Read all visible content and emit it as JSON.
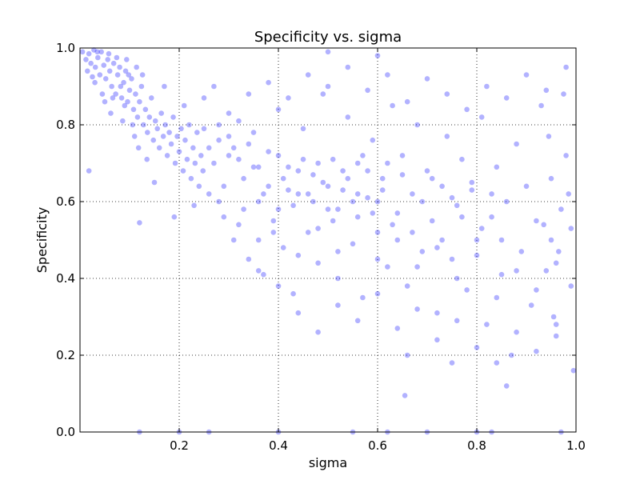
{
  "chart_data": {
    "type": "scatter",
    "title": "Specificity vs. sigma",
    "xlabel": "sigma",
    "ylabel": "Specificity",
    "xlim": [
      0.0,
      1.0
    ],
    "ylim": [
      0.0,
      1.0
    ],
    "x_tick_labels": [
      "0.2",
      "0.4",
      "0.6",
      "0.8",
      "1.0"
    ],
    "x_tick_values": [
      0.2,
      0.4,
      0.6,
      0.8,
      1.0
    ],
    "y_tick_labels": [
      "0.0",
      "0.2",
      "0.4",
      "0.6",
      "0.8",
      "1.0"
    ],
    "y_tick_values": [
      0.0,
      0.2,
      0.4,
      0.6,
      0.8,
      1.0
    ],
    "grid": true,
    "marker_color": "#0000ff",
    "marker_alpha": 0.3,
    "series": [
      {
        "values": [
          [
            0.005,
            0.99
          ],
          [
            0.012,
            0.97
          ],
          [
            0.018,
            0.985
          ],
          [
            0.022,
            0.96
          ],
          [
            0.028,
            0.995
          ],
          [
            0.031,
            0.95
          ],
          [
            0.036,
            0.975
          ],
          [
            0.04,
            0.93
          ],
          [
            0.043,
            0.99
          ],
          [
            0.048,
            0.955
          ],
          [
            0.052,
            0.92
          ],
          [
            0.056,
            0.97
          ],
          [
            0.06,
            0.94
          ],
          [
            0.064,
            0.9
          ],
          [
            0.068,
            0.96
          ],
          [
            0.072,
            0.88
          ],
          [
            0.076,
            0.93
          ],
          [
            0.08,
            0.95
          ],
          [
            0.084,
            0.87
          ],
          [
            0.088,
            0.91
          ],
          [
            0.092,
            0.94
          ],
          [
            0.096,
            0.86
          ],
          [
            0.1,
            0.89
          ],
          [
            0.104,
            0.92
          ],
          [
            0.108,
            0.84
          ],
          [
            0.112,
            0.88
          ],
          [
            0.116,
            0.82
          ],
          [
            0.12,
            0.86
          ],
          [
            0.124,
            0.9
          ],
          [
            0.128,
            0.8
          ],
          [
            0.132,
            0.84
          ],
          [
            0.136,
            0.78
          ],
          [
            0.14,
            0.82
          ],
          [
            0.144,
            0.87
          ],
          [
            0.148,
            0.76
          ],
          [
            0.152,
            0.81
          ],
          [
            0.156,
            0.79
          ],
          [
            0.16,
            0.74
          ],
          [
            0.164,
            0.83
          ],
          [
            0.168,
            0.77
          ],
          [
            0.172,
            0.8
          ],
          [
            0.176,
            0.72
          ],
          [
            0.18,
            0.78
          ],
          [
            0.184,
            0.75
          ],
          [
            0.188,
            0.82
          ],
          [
            0.192,
            0.7
          ],
          [
            0.196,
            0.77
          ],
          [
            0.2,
            0.73
          ],
          [
            0.204,
            0.79
          ],
          [
            0.208,
            0.68
          ],
          [
            0.212,
            0.76
          ],
          [
            0.216,
            0.71
          ],
          [
            0.22,
            0.8
          ],
          [
            0.224,
            0.66
          ],
          [
            0.228,
            0.74
          ],
          [
            0.232,
            0.7
          ],
          [
            0.236,
            0.78
          ],
          [
            0.24,
            0.64
          ],
          [
            0.244,
            0.72
          ],
          [
            0.248,
            0.68
          ],
          [
            0.03,
            0.91
          ],
          [
            0.045,
            0.88
          ],
          [
            0.058,
            0.985
          ],
          [
            0.066,
            0.87
          ],
          [
            0.074,
            0.975
          ],
          [
            0.082,
            0.9
          ],
          [
            0.09,
            0.85
          ],
          [
            0.098,
            0.93
          ],
          [
            0.106,
            0.8
          ],
          [
            0.114,
            0.95
          ],
          [
            0.035,
            0.99
          ],
          [
            0.015,
            0.94
          ],
          [
            0.025,
            0.925
          ],
          [
            0.05,
            0.86
          ],
          [
            0.062,
            0.83
          ],
          [
            0.086,
            0.81
          ],
          [
            0.094,
            0.97
          ],
          [
            0.11,
            0.77
          ],
          [
            0.118,
            0.74
          ],
          [
            0.126,
            0.93
          ],
          [
            0.018,
            0.68
          ],
          [
            0.12,
            0.545
          ],
          [
            0.135,
            0.71
          ],
          [
            0.15,
            0.65
          ],
          [
            0.17,
            0.9
          ],
          [
            0.19,
            0.56
          ],
          [
            0.21,
            0.85
          ],
          [
            0.23,
            0.59
          ],
          [
            0.25,
            0.87
          ],
          [
            0.27,
            0.9
          ],
          [
            0.26,
            0.62
          ],
          [
            0.28,
            0.76
          ],
          [
            0.29,
            0.56
          ],
          [
            0.3,
            0.72
          ],
          [
            0.31,
            0.5
          ],
          [
            0.32,
            0.81
          ],
          [
            0.33,
            0.66
          ],
          [
            0.34,
            0.45
          ],
          [
            0.35,
            0.78
          ],
          [
            0.36,
            0.6
          ],
          [
            0.37,
            0.41
          ],
          [
            0.38,
            0.73
          ],
          [
            0.39,
            0.55
          ],
          [
            0.4,
            0.84
          ],
          [
            0.41,
            0.48
          ],
          [
            0.42,
            0.69
          ],
          [
            0.43,
            0.36
          ],
          [
            0.44,
            0.62
          ],
          [
            0.45,
            0.79
          ],
          [
            0.46,
            0.52
          ],
          [
            0.47,
            0.67
          ],
          [
            0.48,
            0.44
          ],
          [
            0.49,
            0.88
          ],
          [
            0.5,
            0.58
          ],
          [
            0.51,
            0.71
          ],
          [
            0.52,
            0.4
          ],
          [
            0.53,
            0.63
          ],
          [
            0.54,
            0.82
          ],
          [
            0.55,
            0.49
          ],
          [
            0.56,
            0.7
          ],
          [
            0.57,
            0.35
          ],
          [
            0.58,
            0.61
          ],
          [
            0.59,
            0.76
          ],
          [
            0.6,
            0.52
          ],
          [
            0.61,
            0.66
          ],
          [
            0.62,
            0.43
          ],
          [
            0.63,
            0.85
          ],
          [
            0.64,
            0.57
          ],
          [
            0.65,
            0.72
          ],
          [
            0.66,
            0.38
          ],
          [
            0.67,
            0.62
          ],
          [
            0.68,
            0.8
          ],
          [
            0.69,
            0.47
          ],
          [
            0.7,
            0.68
          ],
          [
            0.71,
            0.55
          ],
          [
            0.72,
            0.31
          ],
          [
            0.73,
            0.64
          ],
          [
            0.74,
            0.77
          ],
          [
            0.75,
            0.45
          ],
          [
            0.76,
            0.59
          ],
          [
            0.77,
            0.71
          ],
          [
            0.78,
            0.37
          ],
          [
            0.79,
            0.63
          ],
          [
            0.8,
            0.5
          ],
          [
            0.81,
            0.82
          ],
          [
            0.82,
            0.28
          ],
          [
            0.83,
            0.56
          ],
          [
            0.84,
            0.69
          ],
          [
            0.85,
            0.41
          ],
          [
            0.86,
            0.6
          ],
          [
            0.87,
            0.2
          ],
          [
            0.88,
            0.75
          ],
          [
            0.89,
            0.47
          ],
          [
            0.9,
            0.64
          ],
          [
            0.91,
            0.33
          ],
          [
            0.92,
            0.55
          ],
          [
            0.93,
            0.85
          ],
          [
            0.94,
            0.42
          ],
          [
            0.95,
            0.66
          ],
          [
            0.96,
            0.25
          ],
          [
            0.97,
            0.58
          ],
          [
            0.98,
            0.72
          ],
          [
            0.99,
            0.38
          ],
          [
            0.995,
            0.16
          ],
          [
            0.985,
            0.62
          ],
          [
            0.975,
            0.88
          ],
          [
            0.965,
            0.47
          ],
          [
            0.955,
            0.3
          ],
          [
            0.945,
            0.77
          ],
          [
            0.935,
            0.54
          ],
          [
            0.27,
            0.7
          ],
          [
            0.29,
            0.64
          ],
          [
            0.31,
            0.74
          ],
          [
            0.33,
            0.58
          ],
          [
            0.35,
            0.69
          ],
          [
            0.37,
            0.62
          ],
          [
            0.39,
            0.52
          ],
          [
            0.41,
            0.66
          ],
          [
            0.43,
            0.59
          ],
          [
            0.45,
            0.71
          ],
          [
            0.47,
            0.6
          ],
          [
            0.49,
            0.65
          ],
          [
            0.51,
            0.55
          ],
          [
            0.53,
            0.68
          ],
          [
            0.55,
            0.6
          ],
          [
            0.57,
            0.72
          ],
          [
            0.59,
            0.57
          ],
          [
            0.61,
            0.63
          ],
          [
            0.63,
            0.54
          ],
          [
            0.65,
            0.67
          ],
          [
            0.67,
            0.52
          ],
          [
            0.69,
            0.6
          ],
          [
            0.71,
            0.66
          ],
          [
            0.73,
            0.5
          ],
          [
            0.75,
            0.61
          ],
          [
            0.77,
            0.56
          ],
          [
            0.79,
            0.65
          ],
          [
            0.81,
            0.53
          ],
          [
            0.83,
            0.62
          ],
          [
            0.85,
            0.5
          ],
          [
            0.3,
            0.83
          ],
          [
            0.34,
            0.88
          ],
          [
            0.38,
            0.91
          ],
          [
            0.42,
            0.87
          ],
          [
            0.46,
            0.93
          ],
          [
            0.5,
            0.9
          ],
          [
            0.54,
            0.95
          ],
          [
            0.58,
            0.89
          ],
          [
            0.62,
            0.93
          ],
          [
            0.66,
            0.86
          ],
          [
            0.7,
            0.92
          ],
          [
            0.74,
            0.88
          ],
          [
            0.78,
            0.84
          ],
          [
            0.82,
            0.9
          ],
          [
            0.86,
            0.87
          ],
          [
            0.9,
            0.93
          ],
          [
            0.94,
            0.89
          ],
          [
            0.98,
            0.95
          ],
          [
            0.5,
            0.99
          ],
          [
            0.6,
            0.98
          ],
          [
            0.36,
            0.42
          ],
          [
            0.4,
            0.38
          ],
          [
            0.44,
            0.31
          ],
          [
            0.48,
            0.26
          ],
          [
            0.52,
            0.33
          ],
          [
            0.56,
            0.29
          ],
          [
            0.6,
            0.36
          ],
          [
            0.64,
            0.27
          ],
          [
            0.68,
            0.32
          ],
          [
            0.72,
            0.24
          ],
          [
            0.76,
            0.29
          ],
          [
            0.8,
            0.22
          ],
          [
            0.84,
            0.18
          ],
          [
            0.88,
            0.26
          ],
          [
            0.92,
            0.21
          ],
          [
            0.96,
            0.28
          ],
          [
            0.655,
            0.095
          ],
          [
            0.86,
            0.12
          ],
          [
            0.66,
            0.2
          ],
          [
            0.75,
            0.18
          ],
          [
            0.12,
            0.0
          ],
          [
            0.2,
            0.0
          ],
          [
            0.26,
            0.0
          ],
          [
            0.4,
            0.0
          ],
          [
            0.55,
            0.0
          ],
          [
            0.62,
            0.0
          ],
          [
            0.7,
            0.0
          ],
          [
            0.8,
            0.0
          ],
          [
            0.83,
            0.0
          ],
          [
            0.97,
            0.0
          ],
          [
            0.28,
            0.6
          ],
          [
            0.32,
            0.54
          ],
          [
            0.36,
            0.5
          ],
          [
            0.4,
            0.58
          ],
          [
            0.44,
            0.46
          ],
          [
            0.48,
            0.53
          ],
          [
            0.52,
            0.47
          ],
          [
            0.56,
            0.56
          ],
          [
            0.6,
            0.45
          ],
          [
            0.64,
            0.5
          ],
          [
            0.68,
            0.43
          ],
          [
            0.72,
            0.48
          ],
          [
            0.76,
            0.4
          ],
          [
            0.8,
            0.46
          ],
          [
            0.84,
            0.35
          ],
          [
            0.88,
            0.42
          ],
          [
            0.92,
            0.37
          ],
          [
            0.96,
            0.44
          ],
          [
            0.99,
            0.53
          ],
          [
            0.95,
            0.5
          ],
          [
            0.25,
            0.79
          ],
          [
            0.26,
            0.74
          ],
          [
            0.28,
            0.8
          ],
          [
            0.3,
            0.77
          ],
          [
            0.32,
            0.71
          ],
          [
            0.34,
            0.75
          ],
          [
            0.36,
            0.69
          ],
          [
            0.38,
            0.64
          ],
          [
            0.4,
            0.72
          ],
          [
            0.42,
            0.63
          ],
          [
            0.44,
            0.68
          ],
          [
            0.46,
            0.62
          ],
          [
            0.48,
            0.7
          ],
          [
            0.5,
            0.64
          ],
          [
            0.52,
            0.58
          ],
          [
            0.54,
            0.66
          ],
          [
            0.56,
            0.62
          ],
          [
            0.58,
            0.68
          ],
          [
            0.6,
            0.6
          ],
          [
            0.62,
            0.7
          ]
        ]
      }
    ]
  }
}
